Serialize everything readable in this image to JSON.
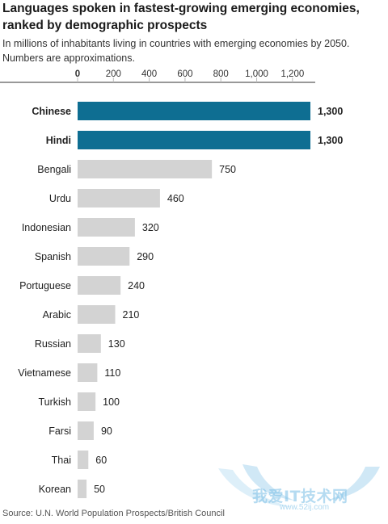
{
  "title": "Languages spoken in fastest-growing emerging economies, ranked by demographic prospects",
  "subtitle": "In millions of inhabitants living in countries with emerging economies by 2050. Numbers are approximations.",
  "source": "Source: U.N. World Population Prospects/British Council",
  "watermark": {
    "text": "我爱IT技术网",
    "url": "www.52ij.com"
  },
  "colors": {
    "highlight": "#0e6e92",
    "normal": "#d3d3d3",
    "axis": "#333333",
    "grid": "#bbbbbb"
  },
  "chart_data": {
    "type": "bar",
    "orientation": "horizontal",
    "title": "Languages spoken in fastest-growing emerging economies, ranked by demographic prospects",
    "xlim": [
      0,
      1300
    ],
    "ticks": [
      0,
      200,
      400,
      600,
      800,
      1000,
      1200
    ],
    "tick_labels": [
      "0",
      "200",
      "400",
      "600",
      "800",
      "1,000",
      "1,200"
    ],
    "categories": [
      "Chinese",
      "Hindi",
      "Bengali",
      "Urdu",
      "Indonesian",
      "Spanish",
      "Portuguese",
      "Arabic",
      "Russian",
      "Vietnamese",
      "Turkish",
      "Farsi",
      "Thai",
      "Korean"
    ],
    "values": [
      1300,
      1300,
      750,
      460,
      320,
      290,
      240,
      210,
      130,
      110,
      100,
      90,
      60,
      50
    ],
    "value_labels": [
      "1,300",
      "1,300",
      "750",
      "460",
      "320",
      "290",
      "240",
      "210",
      "130",
      "110",
      "100",
      "90",
      "60",
      "50"
    ],
    "highlighted": [
      "Chinese",
      "Hindi"
    ]
  }
}
